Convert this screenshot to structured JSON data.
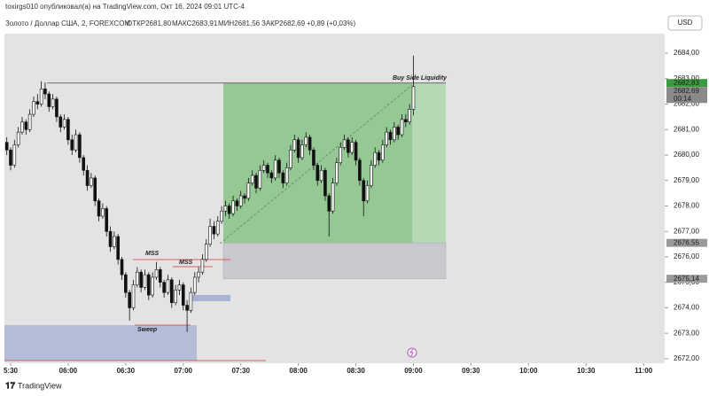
{
  "header": {
    "published": "toxirgs010 опубликовал(а) на TradingView.com, Окт 16, 2024 09:01 UTC-4",
    "symbol": "Золото / Доллар США, 2, FOREXCOM",
    "open": "ОТКР2681,80",
    "high": "МАКС2683,91",
    "low": "МИН2681,56",
    "close": "ЗАКР2682,69",
    "change": "+0,89 (+0,03%)",
    "currency": "USD"
  },
  "footer": {
    "brand": "TradingView"
  },
  "chart_data": {
    "type": "candlestick",
    "bull_color": "#ffffff",
    "bear_color": "#111111",
    "wick_color": "#111111",
    "x": [
      "05:28",
      "05:30",
      "05:32",
      "05:34",
      "05:36",
      "05:38",
      "05:40",
      "05:42",
      "05:44",
      "05:46",
      "05:48",
      "05:50",
      "05:52",
      "05:54",
      "05:56",
      "05:58",
      "06:00",
      "06:02",
      "06:04",
      "06:06",
      "06:08",
      "06:10",
      "06:12",
      "06:14",
      "06:16",
      "06:18",
      "06:20",
      "06:22",
      "06:24",
      "06:26",
      "06:28",
      "06:30",
      "06:32",
      "06:34",
      "06:36",
      "06:38",
      "06:40",
      "06:42",
      "06:44",
      "06:46",
      "06:48",
      "06:50",
      "06:52",
      "06:54",
      "06:56",
      "06:58",
      "07:00",
      "07:02",
      "07:04",
      "07:06",
      "07:08",
      "07:10",
      "07:12",
      "07:14",
      "07:16",
      "07:18",
      "07:20",
      "07:22",
      "07:24",
      "07:26",
      "07:28",
      "07:30",
      "07:32",
      "07:34",
      "07:36",
      "07:38",
      "07:40",
      "07:42",
      "07:44",
      "07:46",
      "07:48",
      "07:50",
      "07:52",
      "07:54",
      "07:56",
      "07:58",
      "08:00",
      "08:02",
      "08:04",
      "08:06",
      "08:08",
      "08:10",
      "08:12",
      "08:14",
      "08:16",
      "08:18",
      "08:20",
      "08:22",
      "08:24",
      "08:26",
      "08:28",
      "08:30",
      "08:32",
      "08:34",
      "08:36",
      "08:38",
      "08:40",
      "08:42",
      "08:44",
      "08:46",
      "08:48",
      "08:50",
      "08:52",
      "08:54",
      "08:56",
      "08:58",
      "09:00"
    ],
    "ohlc": [
      [
        2680.5,
        2680.7,
        2680.0,
        2680.2
      ],
      [
        2680.2,
        2680.3,
        2679.4,
        2679.6
      ],
      [
        2679.6,
        2680.6,
        2679.5,
        2680.4
      ],
      [
        2680.4,
        2681.1,
        2680.3,
        2680.9
      ],
      [
        2680.9,
        2681.5,
        2680.8,
        2681.3
      ],
      [
        2681.3,
        2681.4,
        2680.8,
        2681.0
      ],
      [
        2681.0,
        2681.8,
        2680.9,
        2681.6
      ],
      [
        2681.6,
        2682.3,
        2681.5,
        2682.1
      ],
      [
        2682.1,
        2682.4,
        2681.8,
        2682.0
      ],
      [
        2682.0,
        2682.9,
        2681.9,
        2682.6
      ],
      [
        2682.6,
        2682.85,
        2682.2,
        2682.4
      ],
      [
        2682.4,
        2682.5,
        2681.7,
        2681.9
      ],
      [
        2681.9,
        2682.4,
        2681.8,
        2682.2
      ],
      [
        2682.2,
        2682.3,
        2681.3,
        2681.5
      ],
      [
        2681.5,
        2681.6,
        2680.9,
        2681.1
      ],
      [
        2681.1,
        2681.6,
        2681.0,
        2681.4
      ],
      [
        2681.4,
        2681.5,
        2680.4,
        2680.6
      ],
      [
        2680.6,
        2680.8,
        2680.0,
        2680.2
      ],
      [
        2680.2,
        2681.0,
        2680.1,
        2680.8
      ],
      [
        2680.8,
        2680.9,
        2679.7,
        2679.9
      ],
      [
        2679.9,
        2680.0,
        2679.2,
        2679.4
      ],
      [
        2679.4,
        2679.6,
        2678.6,
        2678.8
      ],
      [
        2678.8,
        2679.3,
        2678.7,
        2679.1
      ],
      [
        2679.1,
        2679.2,
        2678.0,
        2678.2
      ],
      [
        2678.2,
        2678.3,
        2677.4,
        2677.6
      ],
      [
        2677.6,
        2678.1,
        2677.5,
        2677.9
      ],
      [
        2677.9,
        2678.0,
        2676.8,
        2677.0
      ],
      [
        2677.0,
        2677.2,
        2676.2,
        2676.4
      ],
      [
        2676.4,
        2677.0,
        2676.3,
        2676.8
      ],
      [
        2676.8,
        2676.9,
        2675.7,
        2675.9
      ],
      [
        2675.9,
        2676.0,
        2675.1,
        2675.3
      ],
      [
        2675.3,
        2675.4,
        2674.4,
        2674.6
      ],
      [
        2674.6,
        2674.7,
        2673.5,
        2674.0
      ],
      [
        2674.0,
        2675.1,
        2673.9,
        2674.9
      ],
      [
        2674.9,
        2675.6,
        2674.8,
        2675.4
      ],
      [
        2675.4,
        2675.5,
        2674.6,
        2674.8
      ],
      [
        2674.8,
        2675.5,
        2674.7,
        2675.3
      ],
      [
        2675.3,
        2675.4,
        2674.3,
        2674.5
      ],
      [
        2674.5,
        2675.4,
        2674.4,
        2675.2
      ],
      [
        2675.2,
        2675.8,
        2675.1,
        2675.5
      ],
      [
        2675.5,
        2675.6,
        2674.8,
        2675.0
      ],
      [
        2675.0,
        2675.1,
        2674.4,
        2674.6
      ],
      [
        2674.6,
        2675.3,
        2674.5,
        2675.1
      ],
      [
        2675.1,
        2675.2,
        2674.0,
        2674.2
      ],
      [
        2674.2,
        2674.9,
        2674.1,
        2674.7
      ],
      [
        2674.7,
        2675.1,
        2674.5,
        2674.9
      ],
      [
        2674.9,
        2675.0,
        2673.9,
        2674.1
      ],
      [
        2674.1,
        2674.3,
        2673.05,
        2673.9
      ],
      [
        2673.9,
        2674.8,
        2673.8,
        2674.6
      ],
      [
        2674.6,
        2675.4,
        2674.5,
        2675.2
      ],
      [
        2675.2,
        2675.6,
        2675.0,
        2675.4
      ],
      [
        2675.4,
        2676.1,
        2675.3,
        2675.9
      ],
      [
        2675.9,
        2676.7,
        2675.8,
        2676.5
      ],
      [
        2676.5,
        2677.5,
        2676.4,
        2677.2
      ],
      [
        2677.2,
        2677.4,
        2676.7,
        2676.9
      ],
      [
        2676.9,
        2677.6,
        2676.8,
        2677.4
      ],
      [
        2677.4,
        2678.0,
        2677.3,
        2677.8
      ],
      [
        2677.8,
        2678.2,
        2677.6,
        2678.0
      ],
      [
        2678.0,
        2678.1,
        2677.5,
        2677.7
      ],
      [
        2677.7,
        2678.4,
        2677.6,
        2678.2
      ],
      [
        2678.2,
        2678.3,
        2677.8,
        2678.0
      ],
      [
        2678.0,
        2678.6,
        2677.9,
        2678.4
      ],
      [
        2678.4,
        2678.5,
        2678.1,
        2678.3
      ],
      [
        2678.3,
        2679.1,
        2678.2,
        2678.9
      ],
      [
        2678.9,
        2679.4,
        2678.8,
        2679.2
      ],
      [
        2679.2,
        2679.3,
        2678.5,
        2678.7
      ],
      [
        2678.7,
        2679.6,
        2678.6,
        2679.4
      ],
      [
        2679.4,
        2679.8,
        2679.3,
        2679.6
      ],
      [
        2679.6,
        2679.7,
        2679.1,
        2679.3
      ],
      [
        2679.3,
        2679.4,
        2678.9,
        2679.1
      ],
      [
        2679.1,
        2680.0,
        2679.0,
        2679.8
      ],
      [
        2679.8,
        2679.9,
        2679.1,
        2679.3
      ],
      [
        2679.3,
        2679.4,
        2678.7,
        2678.9
      ],
      [
        2678.9,
        2679.7,
        2678.8,
        2679.5
      ],
      [
        2679.5,
        2680.4,
        2679.4,
        2680.2
      ],
      [
        2680.2,
        2680.8,
        2680.1,
        2680.6
      ],
      [
        2680.6,
        2680.7,
        2679.7,
        2679.9
      ],
      [
        2679.9,
        2680.6,
        2679.8,
        2680.4
      ],
      [
        2680.4,
        2680.9,
        2680.3,
        2680.7
      ],
      [
        2680.7,
        2680.8,
        2680.0,
        2680.2
      ],
      [
        2680.2,
        2680.3,
        2679.4,
        2679.6
      ],
      [
        2679.6,
        2679.7,
        2678.8,
        2679.0
      ],
      [
        2679.0,
        2679.6,
        2678.9,
        2679.4
      ],
      [
        2679.4,
        2679.5,
        2678.2,
        2678.4
      ],
      [
        2678.4,
        2678.5,
        2676.8,
        2677.8
      ],
      [
        2677.8,
        2679.1,
        2677.7,
        2678.9
      ],
      [
        2678.9,
        2679.9,
        2678.8,
        2679.7
      ],
      [
        2679.7,
        2680.5,
        2679.6,
        2680.3
      ],
      [
        2680.3,
        2680.8,
        2680.2,
        2680.6
      ],
      [
        2680.6,
        2680.7,
        2679.9,
        2680.1
      ],
      [
        2680.1,
        2680.7,
        2680.0,
        2680.5
      ],
      [
        2680.5,
        2680.6,
        2679.6,
        2679.8
      ],
      [
        2679.8,
        2679.9,
        2678.8,
        2679.0
      ],
      [
        2679.0,
        2679.1,
        2677.6,
        2678.2
      ],
      [
        2678.2,
        2679.0,
        2678.1,
        2678.8
      ],
      [
        2678.8,
        2679.8,
        2678.7,
        2679.6
      ],
      [
        2679.6,
        2680.3,
        2679.5,
        2680.1
      ],
      [
        2680.1,
        2680.2,
        2679.6,
        2679.8
      ],
      [
        2679.8,
        2680.6,
        2679.7,
        2680.4
      ],
      [
        2680.4,
        2681.1,
        2680.3,
        2680.9
      ],
      [
        2680.9,
        2681.0,
        2680.4,
        2680.6
      ],
      [
        2680.6,
        2681.3,
        2680.5,
        2681.1
      ],
      [
        2681.1,
        2681.2,
        2680.6,
        2680.8
      ],
      [
        2680.8,
        2681.6,
        2680.7,
        2681.4
      ],
      [
        2681.4,
        2681.6,
        2681.1,
        2681.3
      ],
      [
        2681.3,
        2682.0,
        2681.2,
        2681.8
      ],
      [
        2681.8,
        2683.91,
        2681.56,
        2682.69
      ]
    ],
    "xlim": [
      "05:27",
      "11:11"
    ],
    "xticks": [
      "5:30",
      "06:00",
      "06:30",
      "07:00",
      "07:30",
      "08:00",
      "08:30",
      "09:00",
      "09:30",
      "10:00",
      "10:30",
      "11:00"
    ],
    "ylim": [
      2671.3,
      2684.7
    ],
    "yticks": [
      {
        "value": 2672,
        "label": "2672,00"
      },
      {
        "value": 2673,
        "label": "2673,00"
      },
      {
        "value": 2674,
        "label": "2674,00"
      },
      {
        "value": 2675,
        "label": "2675,00"
      },
      {
        "value": 2676,
        "label": "2676,00"
      },
      {
        "value": 2677,
        "label": "2677,00"
      },
      {
        "value": 2678,
        "label": "2678,00"
      },
      {
        "value": 2679,
        "label": "2679,00"
      },
      {
        "value": 2680,
        "label": "2680,00"
      },
      {
        "value": 2681,
        "label": "2681,00"
      },
      {
        "value": 2682,
        "label": "2682,00"
      },
      {
        "value": 2683,
        "label": "2683,00"
      },
      {
        "value": 2684,
        "label": "2684,00"
      }
    ],
    "price_labels": [
      {
        "value": 2682.83,
        "label": "2682,83",
        "color": "#3d9a3d"
      },
      {
        "value": 2682.69,
        "label": "2682,69",
        "color": "#8a8a8a",
        "countdown": "00:14"
      },
      {
        "value": 2676.55,
        "label": "2676,55",
        "color": "#9a9a9a"
      },
      {
        "value": 2675.14,
        "label": "2675,14",
        "color": "#9a9a9a"
      }
    ],
    "annotations": {
      "liquidity": "Buy Side Liquidity",
      "mss1": "MSS",
      "mss2": "MSS",
      "sweep": "Sweep"
    }
  }
}
